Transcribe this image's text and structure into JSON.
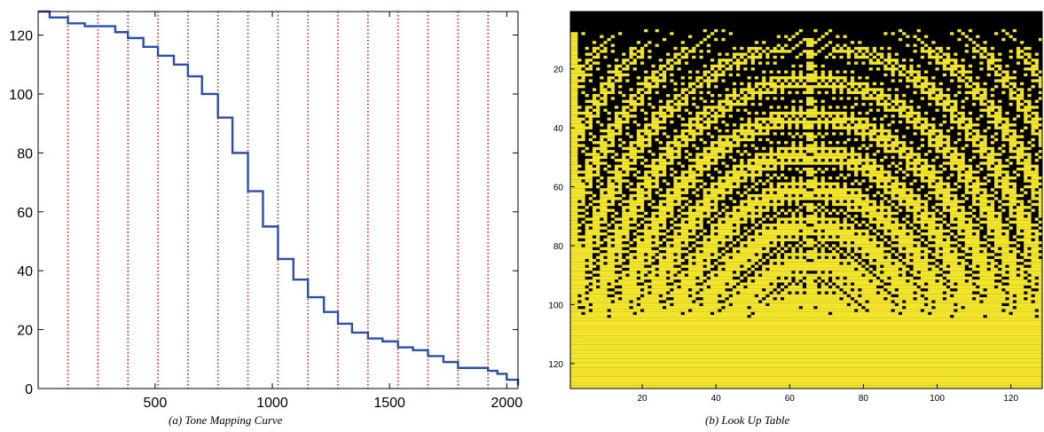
{
  "captions": {
    "a": "(a) Tone Mapping Curve",
    "b": "(b) Look Up Table"
  },
  "chart_data": [
    {
      "type": "line",
      "title": "",
      "xlabel": "",
      "ylabel": "",
      "xlim": [
        1,
        2048
      ],
      "ylim": [
        0,
        128
      ],
      "xticks": [
        500,
        1000,
        1500,
        2000
      ],
      "yticks": [
        0,
        20,
        40,
        60,
        80,
        100,
        120
      ],
      "grid": false,
      "series": [
        {
          "color": "#2b4ea8",
          "x": [
            1,
            50,
            128,
            200,
            256,
            330,
            384,
            450,
            512,
            580,
            640,
            700,
            768,
            830,
            896,
            960,
            1024,
            1090,
            1152,
            1220,
            1280,
            1340,
            1408,
            1470,
            1536,
            1600,
            1664,
            1730,
            1792,
            1850,
            1920,
            1960,
            2000,
            2048
          ],
          "y": [
            128,
            126,
            124,
            123,
            123,
            121,
            119,
            116,
            113,
            110,
            106,
            100,
            92,
            80,
            67,
            55,
            44,
            37,
            31,
            26,
            22,
            19,
            17,
            15.5,
            14,
            12.5,
            11,
            9,
            7,
            6.5,
            6,
            5,
            3,
            1
          ]
        }
      ],
      "vlines": {
        "color": "#d81b1b",
        "style": "dotted",
        "x": [
          128,
          256,
          384,
          512,
          640,
          768,
          896,
          1024,
          1152,
          1280,
          1408,
          1536,
          1664,
          1792,
          1920
        ]
      }
    },
    {
      "type": "heatmap",
      "title": "",
      "xlabel": "",
      "ylabel": "",
      "rows": 128,
      "cols": 128,
      "xlim": [
        1,
        128
      ],
      "ylim": [
        1,
        128
      ],
      "xticks": [
        20,
        40,
        60,
        80,
        100,
        120
      ],
      "yticks": [
        20,
        40,
        60,
        80,
        100,
        120
      ],
      "colors": {
        "on": "#f2e52b",
        "off": "#000000"
      }
    }
  ]
}
